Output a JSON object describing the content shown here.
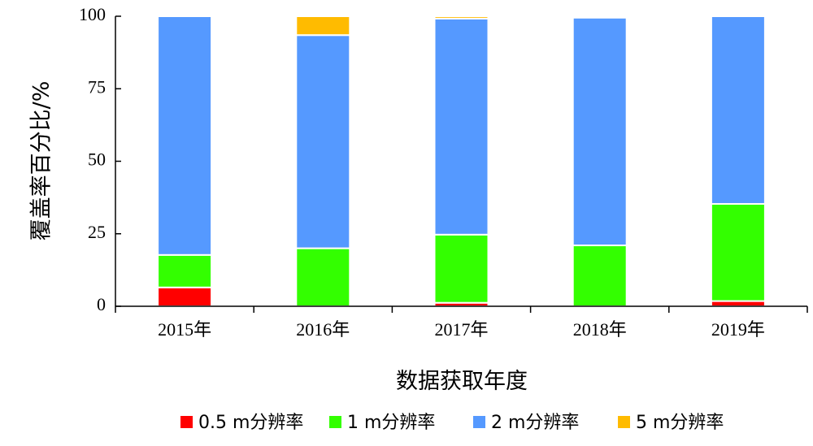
{
  "chart_data": {
    "type": "bar",
    "stacked": true,
    "xlabel": "数据获取年度",
    "ylabel": "覆盖率百分比/%",
    "ylim": [
      0,
      100
    ],
    "yticks": [
      "0",
      "25",
      "50",
      "75",
      "100"
    ],
    "categories": [
      "2015年",
      "2016年",
      "2017年",
      "2018年",
      "2019年"
    ],
    "series": [
      {
        "name": "0.5 m分辨率",
        "color": "#ff0000",
        "values": [
          6.5,
          0,
          1.2,
          0,
          1.8
        ]
      },
      {
        "name": "1 m分辨率",
        "color": "#33ff00",
        "values": [
          11.2,
          20.0,
          23.5,
          21.0,
          33.5
        ]
      },
      {
        "name": "2 m分辨率",
        "color": "#5599ff",
        "values": [
          82.3,
          73.5,
          74.5,
          78.5,
          64.7
        ]
      },
      {
        "name": "5 m分辨率",
        "color": "#ffbb00",
        "values": [
          0,
          6.5,
          0.8,
          0,
          0
        ]
      }
    ],
    "grid": false,
    "legend": "bottom"
  }
}
